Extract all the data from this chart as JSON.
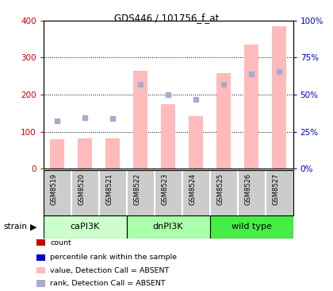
{
  "title": "GDS446 / 101756_f_at",
  "samples": [
    "GSM8519",
    "GSM8520",
    "GSM8521",
    "GSM8522",
    "GSM8523",
    "GSM8524",
    "GSM8525",
    "GSM8526",
    "GSM8527"
  ],
  "bar_values": [
    80,
    82,
    82,
    265,
    175,
    143,
    258,
    335,
    385
  ],
  "rank_squares": [
    130,
    137,
    135,
    228,
    200,
    187,
    228,
    255,
    262
  ],
  "bar_color": "#ffbbbb",
  "rank_color": "#aaaacc",
  "left_tick_color": "#cc0000",
  "right_tick_color": "#0000cc",
  "left_yticklabels": [
    "0",
    "100",
    "200",
    "300",
    "400"
  ],
  "right_yticklabels": [
    "0%",
    "25%",
    "50%",
    "75%",
    "100%"
  ],
  "group_configs": [
    {
      "label": "caPI3K",
      "start": 0,
      "end": 3,
      "color": "#ccffcc"
    },
    {
      "label": "dnPI3K",
      "start": 3,
      "end": 6,
      "color": "#aaffaa"
    },
    {
      "label": "wild type",
      "start": 6,
      "end": 9,
      "color": "#44ee44"
    }
  ],
  "legend_labels": [
    "count",
    "percentile rank within the sample",
    "value, Detection Call = ABSENT",
    "rank, Detection Call = ABSENT"
  ],
  "legend_colors": [
    "#cc0000",
    "#0000cc",
    "#ffbbbb",
    "#aaaacc"
  ],
  "xtick_bg_color": "#cccccc",
  "xtick_border_color": "#ffffff",
  "strain_label": "strain",
  "bar_width": 0.5
}
